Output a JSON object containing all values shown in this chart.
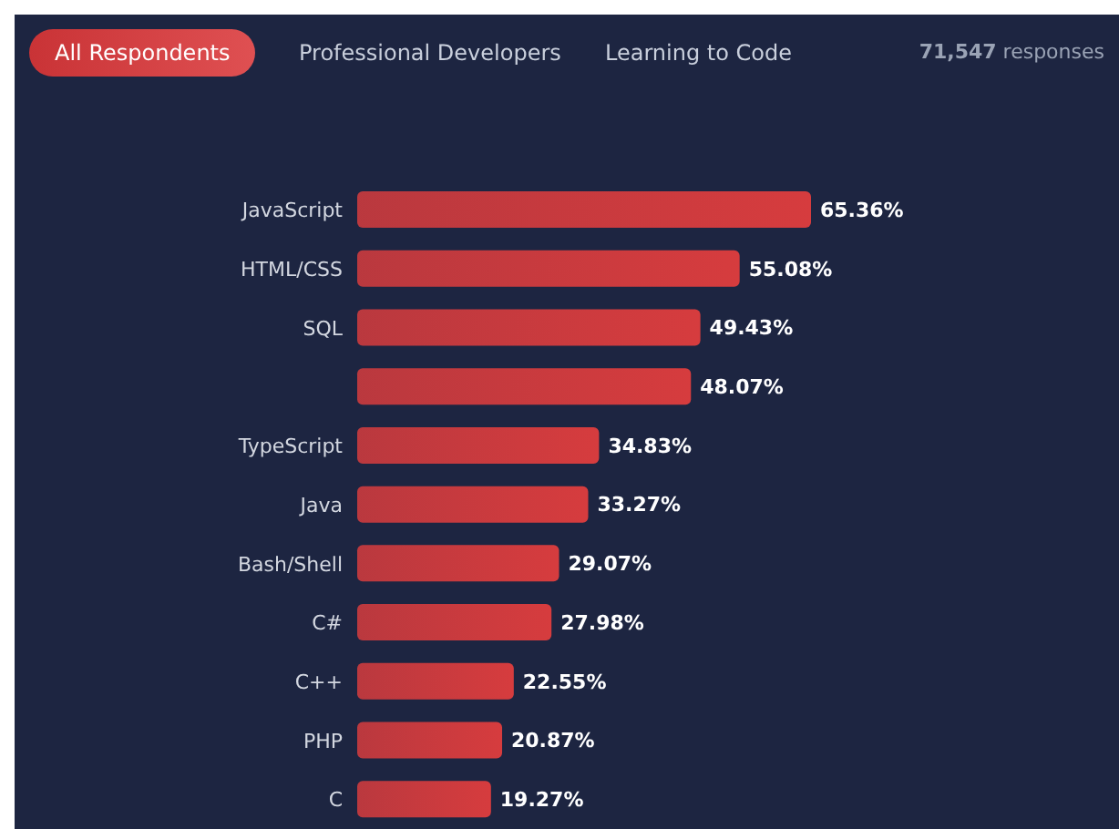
{
  "chart_data": {
    "type": "bar",
    "orientation": "horizontal",
    "annotations": [
      "All Respondents",
      "Professional Developers",
      "Learning to Code",
      "71,547 responses"
    ],
    "categories": [
      "JavaScript",
      "HTML/CSS",
      "SQL",
      null,
      "TypeScript",
      "Java",
      "Bash/Shell",
      "C#",
      "C++",
      "PHP",
      "C"
    ],
    "values": [
      65.36,
      55.08,
      49.43,
      48.07,
      34.83,
      33.27,
      29.07,
      27.98,
      22.55,
      20.87,
      19.27
    ],
    "value_labels": [
      "65.36%",
      "55.08%",
      "49.43%",
      "48.07%",
      "34.83%",
      "33.27%",
      "29.07%",
      "27.98%",
      "22.55%",
      "20.87%",
      "19.27%"
    ],
    "color": "#d63c3e"
  }
}
